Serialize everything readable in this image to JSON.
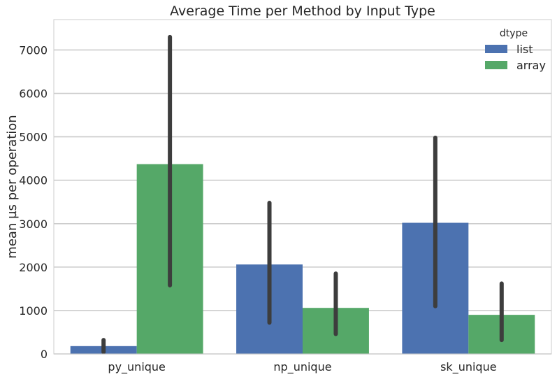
{
  "chart_data": {
    "type": "bar",
    "title": "Average Time per Method by Input Type",
    "xlabel": "",
    "ylabel": "mean µs per operation",
    "categories": [
      "py_unique",
      "np_unique",
      "sk_unique"
    ],
    "ylim": [
      0,
      7700
    ],
    "yticks": [
      0,
      1000,
      2000,
      3000,
      4000,
      5000,
      6000,
      7000
    ],
    "grid": "horizontal",
    "legend": {
      "title": "dtype",
      "placement": "top-right"
    },
    "series": [
      {
        "name": "list",
        "color": "#4c72b0",
        "values": [
          180,
          2060,
          3020
        ],
        "error_low": [
          40,
          720,
          1100
        ],
        "error_high": [
          320,
          3480,
          4980
        ]
      },
      {
        "name": "array",
        "color": "#55a868",
        "values": [
          4370,
          1060,
          900
        ],
        "error_low": [
          1580,
          460,
          320
        ],
        "error_high": [
          7300,
          1850,
          1620
        ]
      }
    ],
    "errorbar_color": "#3d3d3d"
  }
}
